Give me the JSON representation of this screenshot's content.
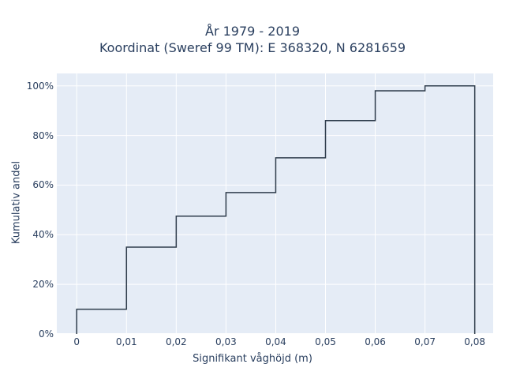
{
  "chart_data": {
    "type": "line",
    "line_shape": "step",
    "title_line1": "År 1979 - 2019",
    "title_line2": "Koordinat (Sweref 99 TM): E 368320, N 6281659",
    "xlabel": "Signifikant våghöjd (m)",
    "ylabel": "Kumulativ andel",
    "x_tick_labels": [
      "0",
      "0,01",
      "0,02",
      "0,03",
      "0,04",
      "0,05",
      "0,06",
      "0,07",
      "0,08"
    ],
    "y_tick_labels": [
      "0%",
      "20%",
      "40%",
      "60%",
      "80%",
      "100%"
    ],
    "x_ticks": [
      0,
      0.01,
      0.02,
      0.03,
      0.04,
      0.05,
      0.06,
      0.07,
      0.08
    ],
    "y_ticks": [
      0,
      20,
      40,
      60,
      80,
      100
    ],
    "xlim": [
      -0.004,
      0.0837
    ],
    "ylim": [
      0,
      105
    ],
    "grid": true,
    "series": [
      {
        "x": [
          0,
          0.01,
          0.02,
          0.03,
          0.04,
          0.05,
          0.06,
          0.07,
          0.08
        ],
        "values": [
          10,
          35,
          47.5,
          57,
          71,
          86,
          98,
          100,
          100
        ],
        "color": "#2f3d4c"
      }
    ],
    "plot_background": "#e5ecf6",
    "grid_color": "#ffffff"
  }
}
